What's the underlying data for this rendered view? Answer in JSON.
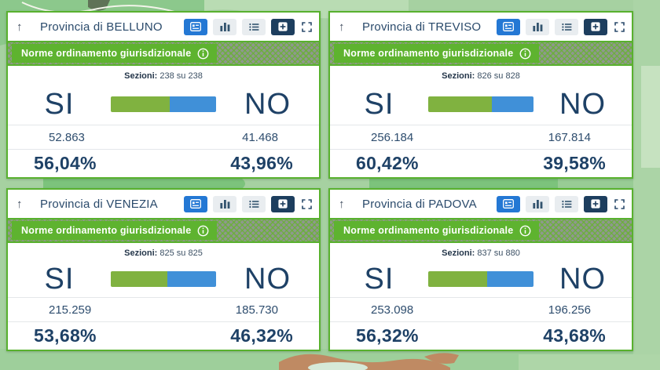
{
  "colors": {
    "panel_border_green": "#58b12e",
    "chip_green": "#5eb32f",
    "hatch_gray": "#8e988e",
    "bar_si_green": "#80b240",
    "bar_no_blue": "#4090d8",
    "active_button_blue": "#2478d4",
    "dark_button_navy": "#1d3e5e",
    "text_navy": "#1e4166",
    "map_base_green": "#a6d1a1"
  },
  "labels": {
    "measure": "Norme ordinamento giurisdizionale",
    "sections": "Sezioni:",
    "si": "SI",
    "no": "NO"
  },
  "toolbar_icons": [
    "card-view",
    "bar-chart-view",
    "list-view",
    "export-overlay",
    "fullscreen"
  ],
  "panels": [
    {
      "title": "Provincia di BELLUNO",
      "sections_value": "238 su 238",
      "si_votes": "52.863",
      "si_percent": "56,04%",
      "si_bar": 56.04,
      "no_votes": "41.468",
      "no_percent": "43,96%",
      "no_bar": 43.96
    },
    {
      "title": "Provincia di TREVISO",
      "sections_value": "826 su 828",
      "si_votes": "256.184",
      "si_percent": "60,42%",
      "si_bar": 60.42,
      "no_votes": "167.814",
      "no_percent": "39,58%",
      "no_bar": 39.58
    },
    {
      "title": "Provincia di VENEZIA",
      "sections_value": "825 su 825",
      "si_votes": "215.259",
      "si_percent": "53,68%",
      "si_bar": 53.68,
      "no_votes": "185.730",
      "no_percent": "46,32%",
      "no_bar": 46.32
    },
    {
      "title": "Provincia di PADOVA",
      "sections_value": "837 su 880",
      "si_votes": "253.098",
      "si_percent": "56,32%",
      "si_bar": 56.32,
      "no_votes": "196.256",
      "no_percent": "43,68%",
      "no_bar": 43.68
    }
  ],
  "chart_data": [
    {
      "type": "bar",
      "title": "Provincia di BELLUNO - Norme ordinamento giurisdizionale",
      "categories": [
        "SI",
        "NO"
      ],
      "values": [
        52863,
        41468
      ],
      "percents": [
        56.04,
        43.96
      ],
      "sections": "238 su 238"
    },
    {
      "type": "bar",
      "title": "Provincia di TREVISO - Norme ordinamento giurisdizionale",
      "categories": [
        "SI",
        "NO"
      ],
      "values": [
        256184,
        167814
      ],
      "percents": [
        60.42,
        39.58
      ],
      "sections": "826 su 828"
    },
    {
      "type": "bar",
      "title": "Provincia di VENEZIA - Norme ordinamento giurisdizionale",
      "categories": [
        "SI",
        "NO"
      ],
      "values": [
        215259,
        185730
      ],
      "percents": [
        53.68,
        46.32
      ],
      "sections": "825 su 825"
    },
    {
      "type": "bar",
      "title": "Provincia di PADOVA - Norme ordinamento giurisdizionale",
      "categories": [
        "SI",
        "NO"
      ],
      "values": [
        253098,
        196256
      ],
      "percents": [
        56.32,
        43.68
      ],
      "sections": "837 su 880"
    }
  ]
}
